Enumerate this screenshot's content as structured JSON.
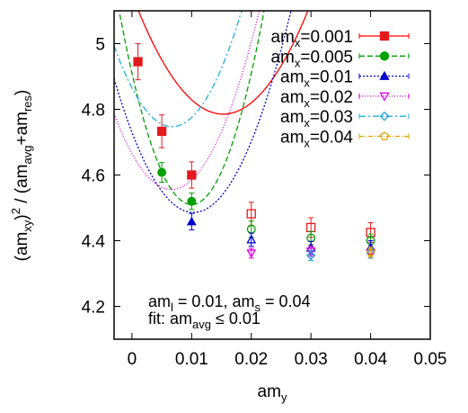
{
  "chart_data": {
    "type": "scatter",
    "xlabel": "am",
    "xlabel_sub": "y",
    "ylabel_parts": [
      "(am",
      "xy",
      ")",
      "2",
      " / (am",
      "avg",
      "+am",
      "res",
      ")"
    ],
    "xlim": [
      -0.003,
      0.05
    ],
    "ylim": [
      4.1,
      5.1
    ],
    "xticks": [
      0,
      0.01,
      0.02,
      0.03,
      0.04,
      0.05
    ],
    "xtick_labels": [
      "0",
      "0.01",
      "0.02",
      "0.03",
      "0.04",
      "0.05"
    ],
    "yticks": [
      4.2,
      4.4,
      4.6,
      4.8,
      5.0
    ],
    "ytick_labels": [
      "4.2",
      "4.4",
      "4.6",
      "4.8",
      "5"
    ],
    "grid": false,
    "legend_position": "top-right",
    "annotation": {
      "line1": [
        "am",
        "l",
        " = 0.01, am",
        "s",
        " = 0.04"
      ],
      "line2": [
        "fit: am",
        "avg",
        " ≤ 0.01"
      ]
    },
    "series": [
      {
        "name": "am_x=0.001",
        "legend_prefix": "am",
        "legend_sub": "x",
        "legend_value": "=0.001",
        "color": "#e31a1c",
        "line_color": "#ff0000",
        "dash": "",
        "marker": "square",
        "fit": [
          5.15,
          -47.7,
          1560
        ],
        "points": [
          {
            "x": 0.001,
            "y": 4.945,
            "err": 0.055,
            "filled": true
          },
          {
            "x": 0.005,
            "y": 4.733,
            "err": 0.05,
            "filled": true
          },
          {
            "x": 0.01,
            "y": 4.6,
            "err": 0.04,
            "filled": true
          },
          {
            "x": 0.02,
            "y": 4.482,
            "err": 0.035,
            "filled": false
          },
          {
            "x": 0.03,
            "y": 4.44,
            "err": 0.03,
            "filled": false
          },
          {
            "x": 0.04,
            "y": 4.425,
            "err": 0.03,
            "filled": false
          }
        ]
      },
      {
        "name": "am_x=0.005",
        "legend_prefix": "am",
        "legend_sub": "x",
        "legend_value": "=0.005",
        "color": "#00a000",
        "line_color": "#00a000",
        "dash": "6,3",
        "marker": "circle",
        "fit": [
          4.91,
          -80,
          4000
        ],
        "points": [
          {
            "x": 0.005,
            "y": 4.608,
            "err": 0.03,
            "filled": true
          },
          {
            "x": 0.01,
            "y": 4.52,
            "err": 0.025,
            "filled": true
          },
          {
            "x": 0.02,
            "y": 4.435,
            "err": 0.025,
            "filled": false
          },
          {
            "x": 0.03,
            "y": 4.408,
            "err": 0.02,
            "filled": false
          },
          {
            "x": 0.04,
            "y": 4.4,
            "err": 0.02,
            "filled": false
          }
        ]
      },
      {
        "name": "am_x=0.01",
        "legend_prefix": "am",
        "legend_sub": "x",
        "legend_value": "=0.01",
        "color": "#0000cc",
        "line_color": "#0000cc",
        "dash": "2,2",
        "marker": "triangle-up",
        "fit": [
          4.73,
          -47.4,
          2300
        ],
        "points": [
          {
            "x": 0.01,
            "y": 4.458,
            "err": 0.025,
            "filled": true
          },
          {
            "x": 0.02,
            "y": 4.403,
            "err": 0.02,
            "filled": false
          },
          {
            "x": 0.03,
            "y": 4.378,
            "err": 0.02,
            "filled": false
          },
          {
            "x": 0.04,
            "y": 4.38,
            "err": 0.02,
            "filled": false
          }
        ]
      },
      {
        "name": "am_x=0.02",
        "legend_prefix": "am",
        "legend_sub": "x",
        "legend_value": "=0.02",
        "color": "#e000e0",
        "line_color": "#e000e0",
        "dash": "1,2",
        "marker": "triangle-down",
        "fit": [
          4.665,
          -33,
          2500
        ],
        "points": [
          {
            "x": 0.02,
            "y": 4.362,
            "err": 0.015,
            "filled": false
          },
          {
            "x": 0.03,
            "y": 4.368,
            "err": 0.015,
            "filled": false
          },
          {
            "x": 0.04,
            "y": 4.362,
            "err": 0.015,
            "filled": false
          }
        ]
      },
      {
        "name": "am_x=0.03",
        "legend_prefix": "am",
        "legend_sub": "x",
        "legend_value": "=0.03",
        "color": "#2aa0d8",
        "line_color": "#20b0d8",
        "dash": "7,3,2,3",
        "marker": "diamond",
        "fit": [
          4.865,
          -35,
          2600
        ],
        "points": [
          {
            "x": 0.03,
            "y": 4.355,
            "err": 0.015,
            "filled": false
          },
          {
            "x": 0.04,
            "y": 4.362,
            "err": 0.015,
            "filled": false
          }
        ]
      },
      {
        "name": "am_x=0.04",
        "legend_prefix": "am",
        "legend_sub": "x",
        "legend_value": "=0.04",
        "color": "#e8a000",
        "line_color": "#e8a000",
        "dash": "5,2,1,2",
        "marker": "pentagon",
        "fit": null,
        "points": [
          {
            "x": 0.04,
            "y": 4.365,
            "err": 0.015,
            "filled": false
          }
        ]
      }
    ]
  }
}
